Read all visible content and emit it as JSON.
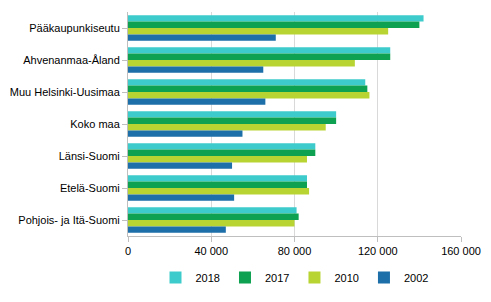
{
  "chart_data": {
    "type": "bar",
    "orientation": "horizontal",
    "categories": [
      "Pääkaupunkiseutu",
      "Ahvenanmaa-Åland",
      "Muu Helsinki-Uusimaa",
      "Koko maa",
      "Länsi-Suomi",
      "Etelä-Suomi",
      "Pohjois- ja Itä-Suomi"
    ],
    "series": [
      {
        "name": "2018",
        "color": "#3ecbcb",
        "values": [
          142000,
          126000,
          114000,
          100000,
          90000,
          86000,
          81000
        ]
      },
      {
        "name": "2017",
        "color": "#0ea151",
        "values": [
          140000,
          126000,
          115000,
          100000,
          90000,
          86000,
          82000
        ]
      },
      {
        "name": "2010",
        "color": "#b8d433",
        "values": [
          125000,
          109000,
          116000,
          95000,
          86000,
          87000,
          80000
        ]
      },
      {
        "name": "2002",
        "color": "#1d6fa9",
        "values": [
          71000,
          65000,
          66000,
          55000,
          50000,
          51000,
          47000
        ]
      }
    ],
    "xlim": [
      0,
      160000
    ],
    "xticks": [
      0,
      {
        "value": 40000,
        "label": "40 000"
      },
      {
        "value": 80000,
        "label": "80 000"
      },
      {
        "value": 120000,
        "label": "120 000"
      },
      {
        "value": 160000,
        "label": "160 000"
      }
    ],
    "grid": true,
    "legend": "bottom"
  }
}
